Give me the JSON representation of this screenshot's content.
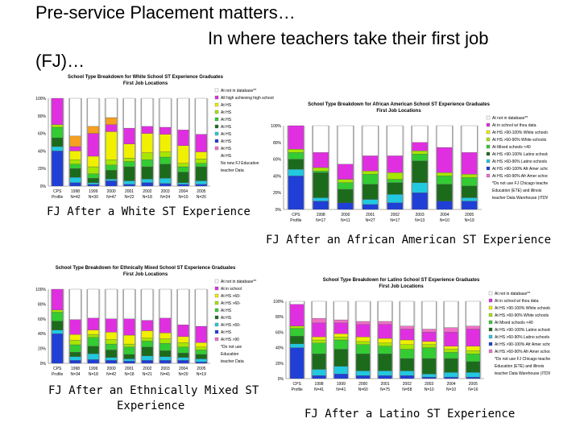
{
  "heading": {
    "line1": "Pre-service Placement matters…",
    "line2": "In where teachers take their first job",
    "line3": "(FJ)…"
  },
  "captions": {
    "white": "FJ After a White ST Experience",
    "african_american": "FJ After an African American ST Experience",
    "mixed_line1": "FJ After an Ethnically Mixed ST",
    "mixed_line2": "Experience",
    "latino": "FJ After a Latino ST Experience"
  },
  "colors": {
    "bar_background": "#b8b8b8",
    "blue": "#1f3fd6",
    "cyan": "#22c8e0",
    "dark_green": "#1c6b1c",
    "green": "#33cc33",
    "lime": "#a6e600",
    "yellow": "#f0f000",
    "magenta": "#e02fe0",
    "orange": "#f5a020",
    "pink": "#f070c8",
    "white": "#ffffff"
  },
  "chart_data": [
    {
      "type": "bar",
      "stacked": true,
      "title_line1": "School Type Breakdown for White School ST Experience Graduates",
      "title_line2": "First Job Locations",
      "categories": [
        "CPS Profile",
        "1998",
        "1999",
        "2000",
        "2001",
        "2002",
        "2003",
        "2004",
        "2005"
      ],
      "category_subtitles": [
        "",
        "N=42",
        "N=30",
        "N=47",
        "N=22",
        "N=18",
        "N=24",
        "N=10",
        "N=26"
      ],
      "y_ticks": [
        "0%",
        "20%",
        "40%",
        "60%",
        "80%",
        "100%"
      ],
      "ylim": [
        0,
        100
      ],
      "legend": [
        "At not in database**",
        "All high achieving high school",
        "At HS",
        "At HS",
        "At HS",
        "At HS",
        "At HS",
        "At HS",
        "At HS",
        "At HS",
        "No new FJ Education",
        "teacher Data"
      ],
      "series": [
        {
          "color": "blue",
          "values": [
            40,
            4,
            2,
            6,
            2,
            4,
            3,
            2,
            2
          ]
        },
        {
          "color": "cyan",
          "values": [
            5,
            6,
            2,
            2,
            4,
            4,
            6,
            2,
            4
          ]
        },
        {
          "color": "dark_green",
          "values": [
            10,
            10,
            5,
            10,
            16,
            14,
            16,
            12,
            16
          ]
        },
        {
          "color": "green",
          "values": [
            12,
            5,
            5,
            6,
            6,
            8,
            8,
            6,
            4
          ]
        },
        {
          "color": "lime",
          "values": [
            3,
            5,
            8,
            6,
            4,
            8,
            6,
            4,
            5
          ]
        },
        {
          "color": "yellow",
          "values": [
            0,
            10,
            12,
            32,
            16,
            22,
            20,
            20,
            8
          ]
        },
        {
          "color": "magenta",
          "values": [
            30,
            5,
            26,
            8,
            18,
            8,
            8,
            18,
            20
          ]
        },
        {
          "color": "orange",
          "values": [
            0,
            12,
            8,
            8,
            0,
            0,
            0,
            0,
            0
          ]
        },
        {
          "color": "white",
          "values": [
            0,
            43,
            32,
            22,
            34,
            32,
            33,
            36,
            41
          ]
        }
      ]
    },
    {
      "type": "bar",
      "stacked": true,
      "title_line1": "School Type Breakdown for African American School ST Experience Graduates",
      "title_line2": "First Job Locations",
      "categories": [
        "CPS Profile",
        "1998",
        "2000",
        "2001",
        "2002",
        "2003",
        "2004",
        "2005"
      ],
      "category_subtitles": [
        "",
        "N=17",
        "N=11",
        "N=27",
        "N=17",
        "N=13",
        "N=10",
        "N=19"
      ],
      "y_ticks": [
        "0%",
        "20%",
        "40%",
        "60%",
        "80%",
        "100%"
      ],
      "ylim": [
        0,
        100
      ],
      "legend": [
        "At not in database**",
        "At in school w/ thou data",
        "At HS >90-100% White schools",
        "At HS >60-90% White schools",
        "At Mixed schools <40",
        "At HS >90-100% Latino schools",
        "At HS >60-90% Latino schools",
        "At HS >90-100% Afr Amer schools",
        "At HS >60-90% Afr Amer schools",
        "*Do not use FJ Chicago teacher",
        "Education (ETE) and illinois",
        "teacher Data Warehouse (ITDW)"
      ],
      "series": [
        {
          "color": "blue",
          "values": [
            40,
            10,
            8,
            6,
            8,
            20,
            10,
            10
          ]
        },
        {
          "color": "cyan",
          "values": [
            8,
            4,
            0,
            6,
            10,
            12,
            0,
            4
          ]
        },
        {
          "color": "dark_green",
          "values": [
            12,
            30,
            16,
            18,
            14,
            26,
            20,
            14
          ]
        },
        {
          "color": "green",
          "values": [
            8,
            2,
            8,
            12,
            4,
            8,
            10,
            10
          ]
        },
        {
          "color": "lime",
          "values": [
            4,
            4,
            4,
            4,
            8,
            4,
            4,
            4
          ]
        },
        {
          "color": "magenta",
          "values": [
            28,
            18,
            18,
            18,
            20,
            10,
            30,
            26
          ]
        },
        {
          "color": "white",
          "values": [
            0,
            32,
            46,
            36,
            36,
            20,
            26,
            32
          ]
        }
      ]
    },
    {
      "type": "bar",
      "stacked": true,
      "title_line1": "School Type Breakdown for Ethnically Mixed School ST Experience Graduates",
      "title_line2": "First Job Locations",
      "categories": [
        "CPS Profile",
        "1998",
        "1999",
        "2000",
        "2001",
        "2002",
        "2003",
        "2004",
        "2005"
      ],
      "category_subtitles": [
        "",
        "N=34",
        "N=18",
        "N=42",
        "N=18",
        "N=21",
        "N=41",
        "N=20",
        "N=19"
      ],
      "y_ticks": [
        "0%",
        "20%",
        "40%",
        "60%",
        "80%",
        "100%"
      ],
      "ylim": [
        0,
        100
      ],
      "legend": [
        "At not in database**",
        "At in school",
        "At HS >60-",
        "At HS >60-",
        "At HS",
        "At HS",
        "At HS >60-",
        "At HS",
        "At HS >90",
        "*Do not use",
        "Education",
        "teacher Data"
      ],
      "series": [
        {
          "color": "blue",
          "values": [
            40,
            4,
            5,
            4,
            3,
            4,
            4,
            4,
            2
          ]
        },
        {
          "color": "cyan",
          "values": [
            5,
            5,
            8,
            4,
            3,
            6,
            5,
            4,
            4
          ]
        },
        {
          "color": "dark_green",
          "values": [
            12,
            6,
            10,
            10,
            6,
            12,
            8,
            6,
            6
          ]
        },
        {
          "color": "green",
          "values": [
            12,
            10,
            12,
            8,
            10,
            8,
            10,
            8,
            6
          ]
        },
        {
          "color": "lime",
          "values": [
            3,
            6,
            4,
            6,
            4,
            4,
            6,
            6,
            4
          ]
        },
        {
          "color": "yellow",
          "values": [
            0,
            8,
            6,
            10,
            12,
            10,
            8,
            8,
            6
          ]
        },
        {
          "color": "magenta",
          "values": [
            28,
            20,
            16,
            18,
            22,
            14,
            20,
            16,
            22
          ]
        },
        {
          "color": "white",
          "values": [
            0,
            41,
            39,
            40,
            40,
            42,
            39,
            48,
            50
          ]
        }
      ]
    },
    {
      "type": "bar",
      "stacked": true,
      "title_line1": "School Type Breakdown for Latino School ST Experience Graduates",
      "title_line2": "First Job Locations",
      "categories": [
        "CPS Profile",
        "1998",
        "1999",
        "2000",
        "2001",
        "2002",
        "2003",
        "2004",
        "2005"
      ],
      "category_subtitles": [
        "",
        "N=41",
        "N=41",
        "N=60",
        "N=75",
        "N=58",
        "N=10",
        "N=10",
        "N=16"
      ],
      "y_ticks": [
        "0%",
        "20%",
        "40%",
        "60%",
        "80%",
        "100%"
      ],
      "ylim": [
        0,
        100
      ],
      "legend": [
        "At not in database**",
        "At in school w/ thou data",
        "At HS >90-100% White schools",
        "At HS >60-90% White schools",
        "At Mixed schools <40",
        "At HS >90-100% Latino schools",
        "At HS >60-90% Latino schools",
        "At HS >90-100% Afr Amer schools",
        "At HS >60-90% Afr Amer schools",
        "*Do not use FJ Chicago teacher",
        "Education (ETE) and illinois",
        "teacher Data Warehouse (ITDW)"
      ],
      "series": [
        {
          "color": "blue",
          "values": [
            40,
            4,
            6,
            4,
            4,
            4,
            2,
            2,
            2
          ]
        },
        {
          "color": "cyan",
          "values": [
            5,
            8,
            10,
            6,
            6,
            6,
            4,
            6,
            6
          ]
        },
        {
          "color": "dark_green",
          "values": [
            10,
            20,
            22,
            22,
            22,
            16,
            20,
            18,
            14
          ]
        },
        {
          "color": "green",
          "values": [
            10,
            14,
            12,
            12,
            10,
            12,
            14,
            8,
            10
          ]
        },
        {
          "color": "lime",
          "values": [
            3,
            4,
            4,
            4,
            4,
            6,
            4,
            4,
            4
          ]
        },
        {
          "color": "yellow",
          "values": [
            0,
            4,
            4,
            6,
            6,
            6,
            4,
            4,
            6
          ]
        },
        {
          "color": "magenta",
          "values": [
            28,
            18,
            14,
            16,
            18,
            14,
            12,
            18,
            22
          ]
        },
        {
          "color": "pink",
          "values": [
            0,
            6,
            4,
            4,
            4,
            4,
            4,
            6,
            4
          ]
        },
        {
          "color": "white",
          "values": [
            4,
            22,
            24,
            26,
            26,
            32,
            36,
            34,
            32
          ]
        }
      ]
    }
  ]
}
